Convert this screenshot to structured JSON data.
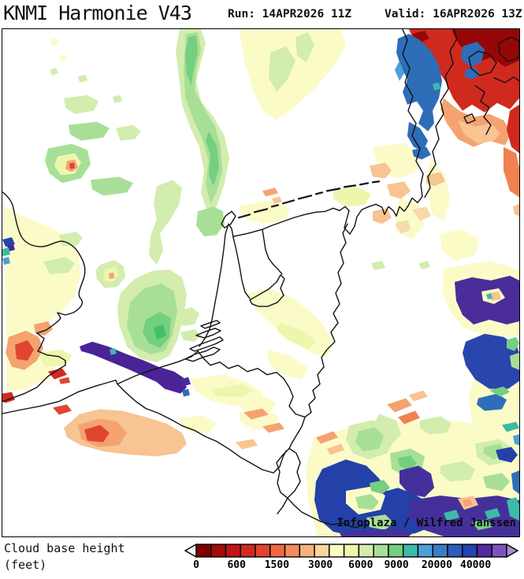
{
  "header": {
    "title": "KNMI Harmonie V43",
    "run": "Run: 14APR2026 11Z",
    "valid": "Valid: 16APR2026 13Z"
  },
  "map": {
    "watermark": "Infoplaza / Wilfred Janssen"
  },
  "legend": {
    "title_line1": "Cloud base height",
    "title_line2": "(feet)",
    "ticks": [
      {
        "label": "0",
        "pos": 0
      },
      {
        "label": "600",
        "pos": 13
      },
      {
        "label": "1500",
        "pos": 26
      },
      {
        "label": "3000",
        "pos": 40
      },
      {
        "label": "6000",
        "pos": 53
      },
      {
        "label": "9000",
        "pos": 64.5
      },
      {
        "label": "20000",
        "pos": 77.5
      },
      {
        "label": "40000",
        "pos": 90
      }
    ],
    "colors": [
      "#7f0000",
      "#a30a0a",
      "#c01414",
      "#d02a1f",
      "#e04531",
      "#ec6a42",
      "#f18d5b",
      "#f5b27c",
      "#f9d49d",
      "#fdfdc2",
      "#eef6ae",
      "#d2edae",
      "#a8df97",
      "#74cf80",
      "#3cbba8",
      "#4da0d8",
      "#3b7cc4",
      "#2e5cb8",
      "#2444ab",
      "#542a9e",
      "#7a55bb"
    ],
    "left_arrow_color": "#ffffff",
    "right_arrow_color": "#a98fd2",
    "outline_color": "#000000"
  },
  "palette": {
    "dkred": "#950707",
    "red": "#d02a1f",
    "redorange": "#e04531",
    "orange": "#f08251",
    "ltorange": "#f4a370",
    "peach": "#f7c492",
    "cream": "#f9d8ac",
    "paleyellow": "#fbfbc8",
    "yellowgreen": "#eef6ae",
    "palegreen": "#d2edae",
    "ltgreen": "#a8df97",
    "green": "#74cf80",
    "dkgreen": "#45c06a",
    "teal": "#3cbba8",
    "skyblue": "#4da0d8",
    "blue": "#2e6db8",
    "mblue": "#2946ad",
    "dkblue": "#2341a8",
    "navy": "#2444ab",
    "indigo": "#4a2d9a",
    "purple": "#4a2396",
    "dkpurple": "#45309b"
  }
}
